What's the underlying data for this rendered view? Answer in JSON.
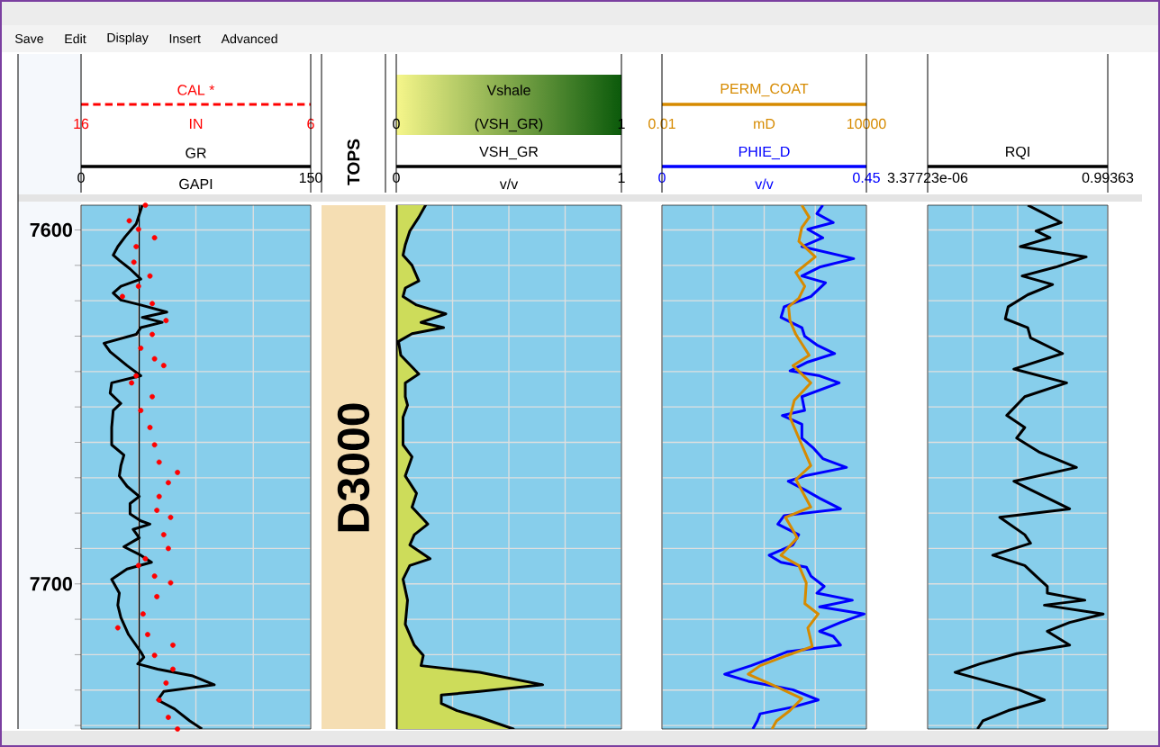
{
  "chart_data": [
    {
      "type": "line",
      "xlabel": "GAPI",
      "x2label": "IN",
      "xlim": [
        0,
        150
      ],
      "xticks": [
        0,
        {
          "value": 37.5,
          "label": null
        },
        {
          "value": 75,
          "label": null
        },
        {
          "value": 112.5,
          "label": null
        },
        150
      ],
      "x2lim": [
        16,
        6
      ],
      "x2ticks": [
        16,
        6
      ],
      "ylim": [
        7741,
        7593
      ],
      "yticks": [
        7600,
        {
          "value": 7610,
          "label": null
        },
        {
          "value": 7620,
          "label": null
        },
        {
          "value": 7630,
          "label": null
        },
        {
          "value": 7640,
          "label": null
        },
        {
          "value": 7650,
          "label": null
        },
        {
          "value": 7660,
          "label": null
        },
        {
          "value": 7670,
          "label": null
        },
        {
          "value": 7680,
          "label": null
        },
        {
          "value": 7690,
          "label": null
        },
        7700,
        {
          "value": 7710,
          "label": null
        },
        {
          "value": 7720,
          "label": null
        },
        {
          "value": 7730,
          "label": null
        },
        {
          "value": 7740,
          "label": null
        }
      ],
      "grid": true,
      "legend": "top",
      "ref_lines": [
        {
          "axis": "x",
          "value": 38,
          "color": "#000000"
        }
      ],
      "annotations": [
        "Save",
        "Edit",
        "Display",
        "Insert",
        "Advanced"
      ],
      "series": [
        {
          "name": "GR",
          "color": "#000000",
          "x": [
            40,
            36,
            29,
            24,
            21,
            25,
            32,
            39,
            26,
            21,
            26,
            39,
            56,
            40,
            53,
            39,
            36,
            15,
            19,
            30,
            39,
            20,
            19,
            26,
            21,
            20,
            20,
            28,
            26,
            25,
            30,
            38,
            32,
            32,
            39,
            45,
            34,
            38,
            28,
            39,
            46,
            30,
            20,
            25,
            24,
            26,
            31,
            39,
            41,
            37,
            50,
            73,
            87,
            54,
            50,
            61,
            71,
            79
          ],
          "values": [
            7593.0,
            7598.3,
            7601.8,
            7604.7,
            7607.1,
            7608.6,
            7611.0,
            7613.9,
            7615.9,
            7617.8,
            7619.8,
            7621.2,
            7623.2,
            7624.7,
            7626.1,
            7627.6,
            7629.5,
            7632.0,
            7634.4,
            7638.3,
            7641.2,
            7643.2,
            7646.1,
            7649.0,
            7651.0,
            7655.8,
            7660.7,
            7663.6,
            7666.6,
            7669.5,
            7672.4,
            7675.3,
            7677.3,
            7680.2,
            7682.2,
            7683.1,
            7684.6,
            7687.0,
            7689.5,
            7691.9,
            7693.9,
            7695.8,
            7698.7,
            7702.6,
            7706.0,
            7709.5,
            7714.3,
            7719.2,
            7720.7,
            7722.6,
            7724.1,
            7726.0,
            7728.5,
            7730.4,
            7732.8,
            7735.3,
            7738.7,
            7741
          ]
        },
        {
          "name": "CAL *",
          "type": "scatter",
          "axis": "x2",
          "marker": "circle",
          "color": "#ff0000",
          "x": [
            13.2,
            13.9,
            13.5,
            12.8,
            13.6,
            13.7,
            13.0,
            13.5,
            14.2,
            12.9,
            12.3,
            12.9,
            13.4,
            12.8,
            12.4,
            13.6,
            13.8,
            12.9,
            13.4,
            13.0,
            12.8,
            12.6,
            11.8,
            12.2,
            12.6,
            12.7,
            12.1,
            12.4,
            12.2,
            13.2,
            13.5,
            12.8,
            12.1,
            12.7,
            13.3,
            14.4,
            13.1,
            12.0,
            12.8,
            12.0,
            12.3,
            12.6,
            12.2,
            11.8
          ],
          "values": [
            7593.0,
            7597.4,
            7599.8,
            7602.2,
            7604.7,
            7609.1,
            7613.0,
            7615.9,
            7618.8,
            7620.8,
            7625.6,
            7629.5,
            7633.4,
            7636.4,
            7638.3,
            7641.2,
            7643.2,
            7647.1,
            7651.0,
            7655.8,
            7660.7,
            7665.6,
            7668.5,
            7671.4,
            7675.3,
            7679.2,
            7681.2,
            7686.1,
            7690.0,
            7692.9,
            7694.8,
            7697.8,
            7699.7,
            7703.6,
            7708.5,
            7712.4,
            7714.3,
            7717.3,
            7720.2,
            7724.1,
            7728.0,
            7732.8,
            7737.7,
            7741
          ]
        }
      ]
    },
    {
      "type": "other",
      "title": "TOPS",
      "annotations": [
        "D3000"
      ]
    },
    {
      "type": "area",
      "title": "Vshale",
      "x2label": "(VSH_GR)",
      "x2lim": [
        0,
        1
      ],
      "x2ticks": [
        0,
        1
      ],
      "xlabel": "v/v",
      "xlim": [
        0,
        1
      ],
      "xticks": [
        0,
        {
          "value": 0.25,
          "label": null
        },
        {
          "value": 0.5,
          "label": null
        },
        {
          "value": 0.75,
          "label": null
        },
        1
      ],
      "ylim": [
        7741,
        7593
      ],
      "yticks": [
        7600,
        7610,
        7620,
        7630,
        7640,
        7650,
        7660,
        7670,
        7680,
        7690,
        7700,
        7710,
        7720,
        7730,
        7740
      ],
      "tick_labels": "x",
      "grid": true,
      "legend": "top",
      "series": [
        {
          "name": "VSH_GR",
          "color": "#cddc5a",
          "x": [
            0.13,
            0.1,
            0.06,
            0.04,
            0.03,
            0.07,
            0.1,
            0.04,
            0.03,
            0.09,
            0.22,
            0.11,
            0.21,
            0.07,
            0.01,
            0.02,
            0.1,
            0.04,
            0.04,
            0.05,
            0.03,
            0.03,
            0.07,
            0.04,
            0.09,
            0.07,
            0.14,
            0.08,
            0.06,
            0.15,
            0.06,
            0.03,
            0.05,
            0.04,
            0.08,
            0.12,
            0.11,
            0.37,
            0.65,
            0.37,
            0.2,
            0.2,
            0.27,
            0.37,
            0.52
          ],
          "values": [
            7593.0,
            7596.4,
            7600.3,
            7604.2,
            7607.1,
            7610.0,
            7614.4,
            7616.4,
            7618.8,
            7621.2,
            7623.7,
            7626.1,
            7627.6,
            7629.3,
            7631.5,
            7635.4,
            7640.7,
            7643.2,
            7647.1,
            7649.5,
            7652.9,
            7660.7,
            7664.1,
            7669.5,
            7674.4,
            7678.3,
            7683.1,
            7686.1,
            7689.0,
            7692.9,
            7694.8,
            7698.7,
            7704.6,
            7711.4,
            7717.3,
            7720.2,
            7723.1,
            7725.0,
            7728.5,
            7730.4,
            7731.4,
            7733.8,
            7735.8,
            7737.7,
            7741
          ]
        }
      ]
    },
    {
      "type": "line",
      "xlabel": "v/v",
      "x2label": "mD",
      "xlim": [
        0,
        0.45
      ],
      "xticks": [
        0,
        {
          "value": 0.1125,
          "label": null
        },
        {
          "value": 0.225,
          "label": null
        },
        {
          "value": 0.3375,
          "label": null
        },
        0.45
      ],
      "x2lim": [
        0.01,
        10000
      ],
      "x2ticks": [
        0.01,
        10000
      ],
      "log": "x2",
      "ylim": [
        7741,
        7593
      ],
      "yticks": [
        7600,
        7610,
        7620,
        7630,
        7640,
        7650,
        7660,
        7670,
        7680,
        7690,
        7700,
        7710,
        7720,
        7730,
        7740
      ],
      "tick_labels": "x",
      "grid": true,
      "legend": "top",
      "series": [
        {
          "name": "PHIE_D",
          "color": "#0000ff",
          "x": [
            0.354,
            0.341,
            0.377,
            0.321,
            0.354,
            0.308,
            0.422,
            0.347,
            0.308,
            0.36,
            0.328,
            0.269,
            0.262,
            0.308,
            0.314,
            0.341,
            0.38,
            0.321,
            0.282,
            0.347,
            0.39,
            0.308,
            0.314,
            0.265,
            0.308,
            0.308,
            0.334,
            0.354,
            0.406,
            0.314,
            0.278,
            0.314,
            0.347,
            0.393,
            0.269,
            0.255,
            0.301,
            0.288,
            0.236,
            0.262,
            0.318,
            0.328,
            0.357,
            0.341,
            0.419,
            0.347,
            0.445,
            0.393,
            0.347,
            0.377,
            0.393,
            0.275,
            0.236,
            0.196,
            0.138,
            0.19,
            0.288,
            0.344,
            0.288,
            0.216,
            0.21,
            0.2
          ],
          "values": [
            7593.0,
            7595.4,
            7597.9,
            7599.8,
            7602.2,
            7604.7,
            7608.1,
            7610.5,
            7613.0,
            7614.9,
            7618.8,
            7621.7,
            7624.7,
            7627.6,
            7630.0,
            7632.5,
            7634.9,
            7637.3,
            7639.8,
            7641.2,
            7643.2,
            7647.1,
            7651.0,
            7652.4,
            7654.9,
            7658.8,
            7661.7,
            7664.6,
            7667.1,
            7669.5,
            7671.0,
            7673.4,
            7675.8,
            7678.8,
            7680.7,
            7683.1,
            7686.1,
            7689.0,
            7691.9,
            7693.9,
            7695.3,
            7697.8,
            7700.7,
            7702.6,
            7704.6,
            7706.5,
            7708.5,
            7710.9,
            7713.4,
            7714.8,
            7717.3,
            7719.2,
            7721.2,
            7723.1,
            7725.5,
            7727.5,
            7729.9,
            7732.8,
            7734.8,
            7736.7,
            7738.7,
            7741
          ]
        },
        {
          "name": "PERM_COAT",
          "axis": "x2",
          "color": "#d68a00",
          "x": [
            127,
            209,
            127,
            104,
            315,
            85,
            155,
            104,
            52,
            57,
            85,
            209,
            70,
            233,
            77,
            57,
            104,
            233,
            85,
            233,
            42,
            94,
            31,
            104,
            172,
            156,
            385,
            191,
            257,
            47,
            7.6,
            3.4,
            21,
            127,
            57,
            23,
            17
          ],
          "values": [
            7593.0,
            7596.4,
            7599.3,
            7603.2,
            7607.6,
            7612.0,
            7615.9,
            7619.3,
            7621.7,
            7625.6,
            7629.5,
            7635.4,
            7638.3,
            7643.2,
            7648.1,
            7652.9,
            7658.8,
            7666.6,
            7670.5,
            7678.3,
            7681.2,
            7687.0,
            7691.9,
            7694.8,
            7699.7,
            7705.6,
            7708.5,
            7712.4,
            7717.7,
            7720.2,
            7723.1,
            7725.5,
            7728.9,
            7732.4,
            7735.8,
            7738.7,
            7741
          ]
        }
      ]
    },
    {
      "type": "line",
      "log": "x",
      "xlim": [
        3.37723e-06,
        0.99363
      ],
      "xticks": [
        3.37723e-06,
        {
          "value": 7.862e-05,
          "label": null
        },
        {
          "value": 0.0018325,
          "label": null
        },
        {
          "value": 0.04266,
          "label": null
        },
        0.99363
      ],
      "ylim": [
        7741,
        7593
      ],
      "yticks": [
        7600,
        7610,
        7620,
        7630,
        7640,
        7650,
        7660,
        7670,
        7680,
        7690,
        7700,
        7710,
        7720,
        7730,
        7740
      ],
      "tick_labels": "x",
      "grid": true,
      "legend": "top",
      "series": [
        {
          "name": "RQI",
          "color": "#000000",
          "x": [
            0.0037,
            0.0118,
            0.038,
            0.0066,
            0.0175,
            0.0022,
            0.22,
            0.026,
            0.0025,
            0.021,
            0.0037,
            0.00094,
            0.00077,
            0.0037,
            0.0045,
            0.042,
            0.0014,
            0.056,
            0.003,
            0.00085,
            0.003,
            0.0017,
            0.008,
            0.111,
            0.0014,
            0.0045,
            0.069,
            0.00052,
            0.003,
            0.0045,
            0.00032,
            0.003,
            0.0066,
            0.0145,
            0.0145,
            0.2,
            0.0118,
            0.72,
            0.069,
            0.0145,
            0.069,
            0.0017,
            0.00013,
            2.3e-05,
            0.00035,
            0.002,
            0.0118,
            0.00094,
            0.00016,
            0.00011
          ],
          "values": [
            7593.0,
            7595.4,
            7597.9,
            7600.3,
            7602.2,
            7604.7,
            7607.6,
            7610.5,
            7613.0,
            7615.4,
            7618.3,
            7621.7,
            7625.1,
            7627.6,
            7630.5,
            7634.9,
            7639.3,
            7643.2,
            7647.1,
            7652.4,
            7655.8,
            7658.8,
            7662.7,
            7667.1,
            7671.0,
            7673.4,
            7678.8,
            7681.2,
            7686.1,
            7688.5,
            7691.9,
            7694.8,
            7697.8,
            7700.7,
            7702.6,
            7704.6,
            7706.0,
            7708.5,
            7710.9,
            7713.4,
            7717.3,
            7719.7,
            7722.6,
            7725.0,
            7728.0,
            7729.9,
            7732.8,
            7735.8,
            7738.7,
            7741
          ]
        }
      ]
    }
  ]
}
